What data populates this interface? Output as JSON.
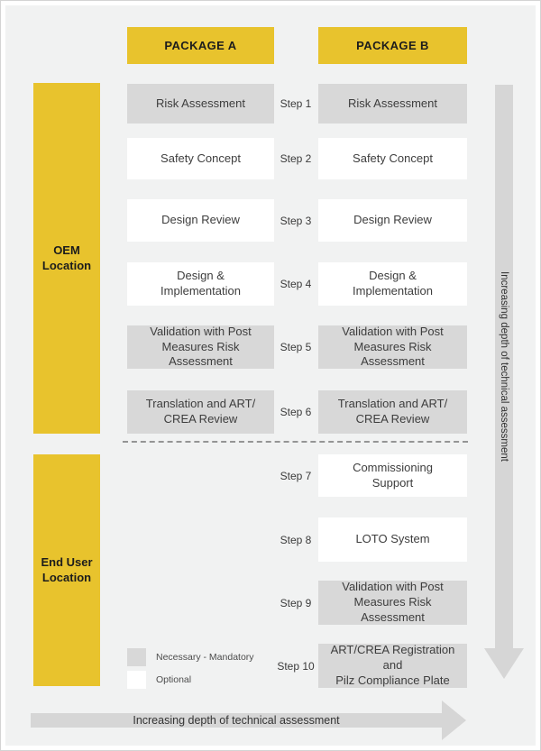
{
  "colors": {
    "accent_yellow": "#e8c32d",
    "mandatory_gray": "#d8d8d8",
    "optional_white": "#ffffff",
    "arrow_gray": "#d6d6d6",
    "background": "#f1f2f2"
  },
  "packages": {
    "a": "PACKAGE A",
    "b": "PACKAGE B"
  },
  "locations": {
    "oem": "OEM Location",
    "end_user": "End User Location"
  },
  "steps": [
    {
      "label": "Step 1",
      "package_a": {
        "text": "Risk Assessment",
        "type": "mandatory"
      },
      "package_b": {
        "text": "Risk Assessment",
        "type": "mandatory"
      }
    },
    {
      "label": "Step 2",
      "package_a": {
        "text": "Safety Concept",
        "type": "optional"
      },
      "package_b": {
        "text": "Safety Concept",
        "type": "optional"
      }
    },
    {
      "label": "Step 3",
      "package_a": {
        "text": "Design Review",
        "type": "optional"
      },
      "package_b": {
        "text": "Design Review",
        "type": "optional"
      }
    },
    {
      "label": "Step 4",
      "package_a": {
        "text": "Design &\nImplementation",
        "type": "optional"
      },
      "package_b": {
        "text": "Design &\nImplementation",
        "type": "optional"
      }
    },
    {
      "label": "Step 5",
      "package_a": {
        "text": "Validation with Post\nMeasures Risk Assessment",
        "type": "mandatory"
      },
      "package_b": {
        "text": "Validation with Post\nMeasures Risk Assessment",
        "type": "mandatory"
      }
    },
    {
      "label": "Step 6",
      "package_a": {
        "text": "Translation and ART/\nCREA Review",
        "type": "mandatory"
      },
      "package_b": {
        "text": "Translation and ART/\nCREA Review",
        "type": "mandatory"
      }
    },
    {
      "label": "Step 7",
      "package_a": null,
      "package_b": {
        "text": "Commissioning\nSupport",
        "type": "optional"
      }
    },
    {
      "label": "Step 8",
      "package_a": null,
      "package_b": {
        "text": "LOTO System",
        "type": "optional"
      }
    },
    {
      "label": "Step 9",
      "package_a": null,
      "package_b": {
        "text": "Validation with Post\nMeasures Risk\nAssessment",
        "type": "mandatory"
      }
    },
    {
      "label": "Step 10",
      "package_a": null,
      "package_b": {
        "text": "ART/CREA Registration and\nPilz Compliance Plate",
        "type": "mandatory"
      }
    }
  ],
  "legend": {
    "mandatory_label": "Necessary - Mandatory",
    "optional_label": "Optional"
  },
  "arrows": {
    "vertical_text": "Increasing depth of technical assessment",
    "horizontal_text": "Increasing depth of technical assessment"
  }
}
